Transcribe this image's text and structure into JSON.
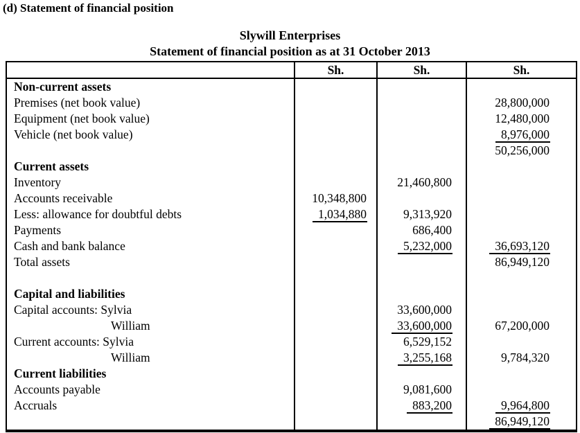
{
  "heading": "(d) Statement of financial position",
  "title": {
    "company": "Slywill Enterprises",
    "statement": "Statement of financial position as at 31 October 2013"
  },
  "currency_unit": "Sh.",
  "colors": {
    "text": "#000000",
    "background": "#ffffff",
    "border": "#000000"
  },
  "table": {
    "headers": {
      "col1": "Sh.",
      "col2": "Sh.",
      "col3": "Sh."
    },
    "rows": [
      {
        "label": "Non-current assets",
        "style": "bold"
      },
      {
        "label": "Premises (net book value)",
        "c3": "28,800,000"
      },
      {
        "label": "Equipment (net book value)",
        "c3": "12,480,000"
      },
      {
        "label": "Vehicle (net book value)",
        "c3": "8,976,000",
        "u3": true
      },
      {
        "label": "",
        "c3": "50,256,000"
      },
      {
        "label": "Current assets",
        "style": "bold"
      },
      {
        "label": "Inventory",
        "c2": "21,460,800"
      },
      {
        "label": "Accounts receivable",
        "c1": "10,348,800"
      },
      {
        "label": "Less: allowance for doubtful debts",
        "c1": "1,034,880",
        "u1": true,
        "c2": "9,313,920"
      },
      {
        "label": "Payments",
        "c2": "686,400"
      },
      {
        "label": "Cash and bank balance",
        "c2": "5,232,000",
        "u2": true,
        "c3": "36,693,120",
        "u3": true
      },
      {
        "label": "Total assets",
        "c3": "86,949,120"
      },
      {
        "label": ""
      },
      {
        "label": "Capital and liabilities",
        "style": "bold"
      },
      {
        "label": "Capital accounts: Sylvia",
        "c2": "33,600,000"
      },
      {
        "label": "William",
        "style": "indent",
        "c2": "33,600,000",
        "u2": true,
        "c3": "67,200,000"
      },
      {
        "label": "Current accounts: Sylvia",
        "c2": "6,529,152"
      },
      {
        "label": "William",
        "style": "indent",
        "c2": "3,255,168",
        "u2": true,
        "c3": "9,784,320"
      },
      {
        "label": "Current liabilities",
        "style": "bold"
      },
      {
        "label": "Accounts payable",
        "c2": "9,081,600"
      },
      {
        "label": "Accruals",
        "c2": "883,200",
        "u2": true,
        "c3": "9,964,800",
        "u3": true
      },
      {
        "label": "",
        "c3": "86,949,120",
        "u3": "double"
      }
    ]
  }
}
